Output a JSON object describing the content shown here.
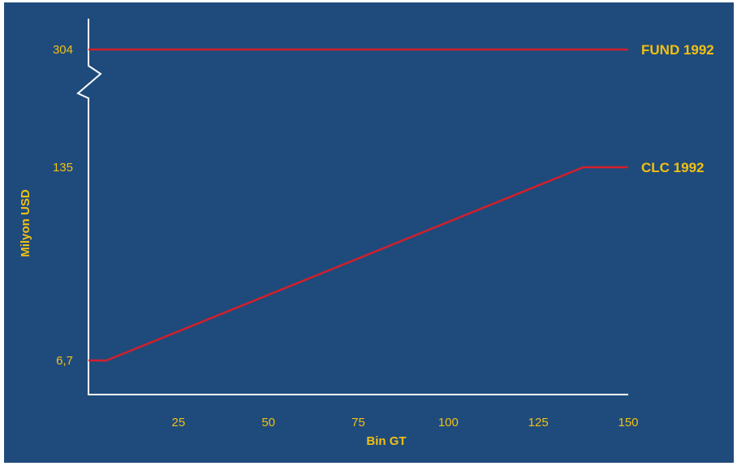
{
  "chart_data": {
    "type": "line",
    "xlabel": "Bin GT",
    "ylabel": "Milyon USD",
    "x_ticks": [
      "25",
      "50",
      "75",
      "100",
      "125",
      "150"
    ],
    "y_ticks": [
      "6,7",
      "135",
      "304"
    ],
    "xlim": [
      0,
      150
    ],
    "axis_break": "y",
    "grid": false,
    "colors": {
      "background": "#1f4b7c",
      "line": "#d41f2a",
      "axis": "#ffffff",
      "text": "#f2c010"
    },
    "series": [
      {
        "name": "FUND 1992",
        "x": [
          0,
          150
        ],
        "y": [
          304,
          304
        ]
      },
      {
        "name": "CLC 1992",
        "x": [
          0,
          5,
          137.5,
          150
        ],
        "y": [
          6.7,
          6.7,
          135,
          135
        ]
      }
    ]
  }
}
